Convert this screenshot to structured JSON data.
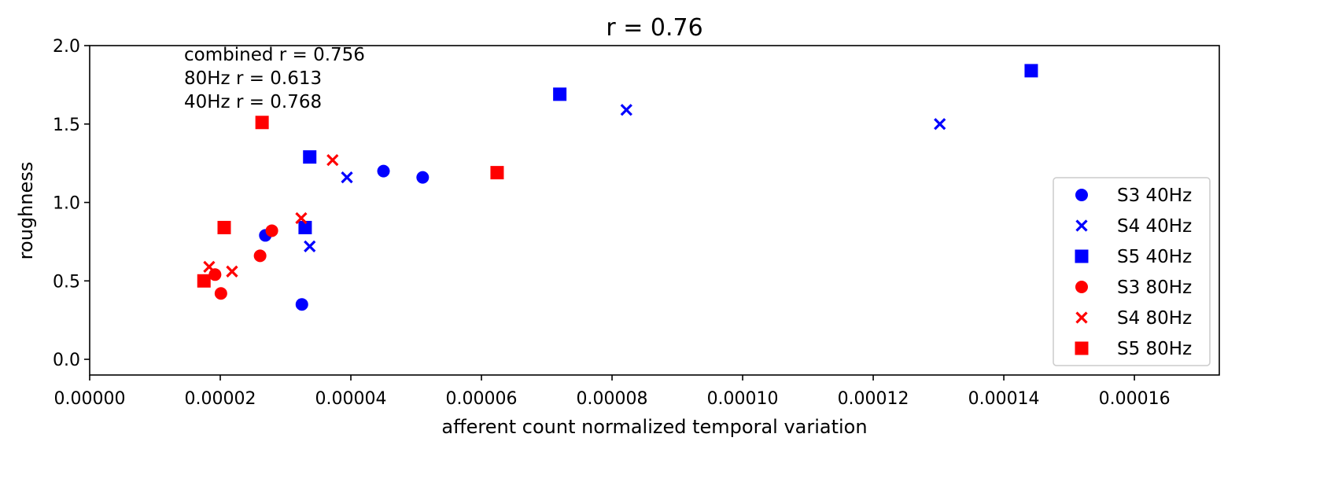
{
  "chart_data": {
    "type": "scatter",
    "title": "r = 0.76",
    "xlabel": "afferent count normalized temporal variation",
    "ylabel": "roughness",
    "xlim": [
      0,
      0.000173
    ],
    "ylim": [
      -0.1,
      2.0
    ],
    "xticks": [
      "0.00000",
      "0.00002",
      "0.00004",
      "0.00006",
      "0.00008",
      "0.00010",
      "0.00012",
      "0.00014",
      "0.00016"
    ],
    "yticks": [
      "0.0",
      "0.5",
      "1.0",
      "1.5",
      "2.0"
    ],
    "grid": false,
    "legend_position": "lower-right",
    "annotations": [
      "combined r = 0.756",
      "80Hz r = 0.613",
      "40Hz r = 0.768"
    ],
    "series": [
      {
        "name": "S3 40Hz",
        "marker": "circle",
        "color": "#0000ff",
        "points": [
          [
            2.69e-05,
            0.79
          ],
          [
            3.25e-05,
            0.35
          ],
          [
            4.5e-05,
            1.2
          ],
          [
            5.1e-05,
            1.16
          ]
        ]
      },
      {
        "name": "S4 40Hz",
        "marker": "x",
        "color": "#0000ff",
        "points": [
          [
            3.37e-05,
            0.72
          ],
          [
            3.94e-05,
            1.16
          ],
          [
            8.22e-05,
            1.59
          ],
          [
            0.0001302,
            1.5
          ]
        ]
      },
      {
        "name": "S5 40Hz",
        "marker": "square",
        "color": "#0000ff",
        "points": [
          [
            3.3e-05,
            0.84
          ],
          [
            3.37e-05,
            1.29
          ],
          [
            7.2e-05,
            1.69
          ],
          [
            0.0001442,
            1.84
          ]
        ]
      },
      {
        "name": "S3 80Hz",
        "marker": "circle",
        "color": "#ff0000",
        "points": [
          [
            1.92e-05,
            0.54
          ],
          [
            2.01e-05,
            0.42
          ],
          [
            2.61e-05,
            0.66
          ],
          [
            2.79e-05,
            0.82
          ]
        ]
      },
      {
        "name": "S4 80Hz",
        "marker": "x",
        "color": "#ff0000",
        "points": [
          [
            1.83e-05,
            0.59
          ],
          [
            2.18e-05,
            0.56
          ],
          [
            3.24e-05,
            0.9
          ],
          [
            3.72e-05,
            1.27
          ]
        ]
      },
      {
        "name": "S5 80Hz",
        "marker": "square",
        "color": "#ff0000",
        "points": [
          [
            1.75e-05,
            0.5
          ],
          [
            2.06e-05,
            0.84
          ],
          [
            2.64e-05,
            1.51
          ],
          [
            6.24e-05,
            1.19
          ]
        ]
      }
    ]
  }
}
